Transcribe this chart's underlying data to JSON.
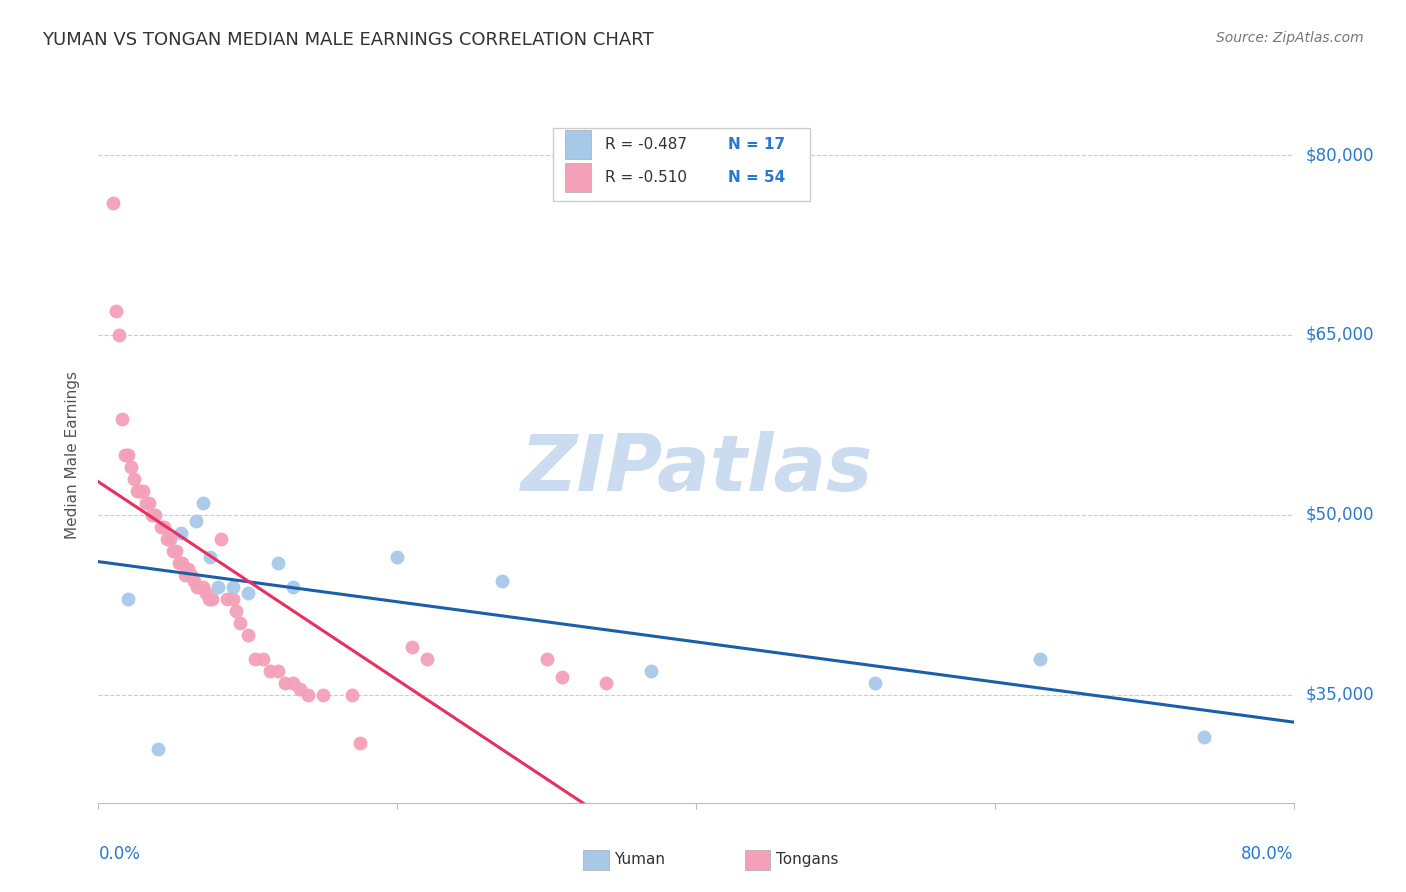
{
  "title": "YUMAN VS TONGAN MEDIAN MALE EARNINGS CORRELATION CHART",
  "source": "Source: ZipAtlas.com",
  "ylabel": "Median Male Earnings",
  "xlim": [
    0.0,
    0.8
  ],
  "ylim": [
    26000,
    84000
  ],
  "yuman_R": "-0.487",
  "yuman_N": "17",
  "tongan_R": "-0.510",
  "tongan_N": "54",
  "yuman_color": "#a8c8e8",
  "tongan_color": "#f4a0b8",
  "yuman_line_color": "#1a5fa8",
  "tongan_line_color": "#e83060",
  "tongan_line_dashed_color": "#f0b0c8",
  "background_color": "#ffffff",
  "watermark": "ZIPatlas",
  "watermark_color": "#ccdcf0",
  "ytick_positions": [
    35000,
    50000,
    65000,
    80000
  ],
  "ytick_labels": [
    "$35,000",
    "$50,000",
    "$65,000",
    "$80,000"
  ],
  "yuman_x": [
    0.02,
    0.04,
    0.055,
    0.065,
    0.07,
    0.075,
    0.08,
    0.09,
    0.1,
    0.12,
    0.13,
    0.2,
    0.27,
    0.37,
    0.52,
    0.63,
    0.74
  ],
  "yuman_y": [
    43000,
    30500,
    48500,
    49500,
    51000,
    46500,
    44000,
    44000,
    43500,
    46000,
    44000,
    46500,
    44500,
    37000,
    36000,
    38000,
    31500
  ],
  "tongan_x": [
    0.01,
    0.012,
    0.014,
    0.016,
    0.018,
    0.02,
    0.022,
    0.024,
    0.026,
    0.028,
    0.03,
    0.032,
    0.034,
    0.036,
    0.038,
    0.042,
    0.044,
    0.046,
    0.048,
    0.05,
    0.052,
    0.054,
    0.056,
    0.058,
    0.06,
    0.062,
    0.064,
    0.066,
    0.07,
    0.072,
    0.074,
    0.076,
    0.082,
    0.086,
    0.09,
    0.092,
    0.095,
    0.1,
    0.105,
    0.11,
    0.115,
    0.12,
    0.125,
    0.13,
    0.135,
    0.14,
    0.15,
    0.17,
    0.175,
    0.21,
    0.22,
    0.3,
    0.31,
    0.34
  ],
  "tongan_y": [
    76000,
    67000,
    65000,
    58000,
    55000,
    55000,
    54000,
    53000,
    52000,
    52000,
    52000,
    51000,
    51000,
    50000,
    50000,
    49000,
    49000,
    48000,
    48000,
    47000,
    47000,
    46000,
    46000,
    45000,
    45500,
    45000,
    44500,
    44000,
    44000,
    43500,
    43000,
    43000,
    48000,
    43000,
    43000,
    42000,
    41000,
    40000,
    38000,
    38000,
    37000,
    37000,
    36000,
    36000,
    35500,
    35000,
    35000,
    35000,
    31000,
    39000,
    38000,
    38000,
    36500,
    36000
  ]
}
